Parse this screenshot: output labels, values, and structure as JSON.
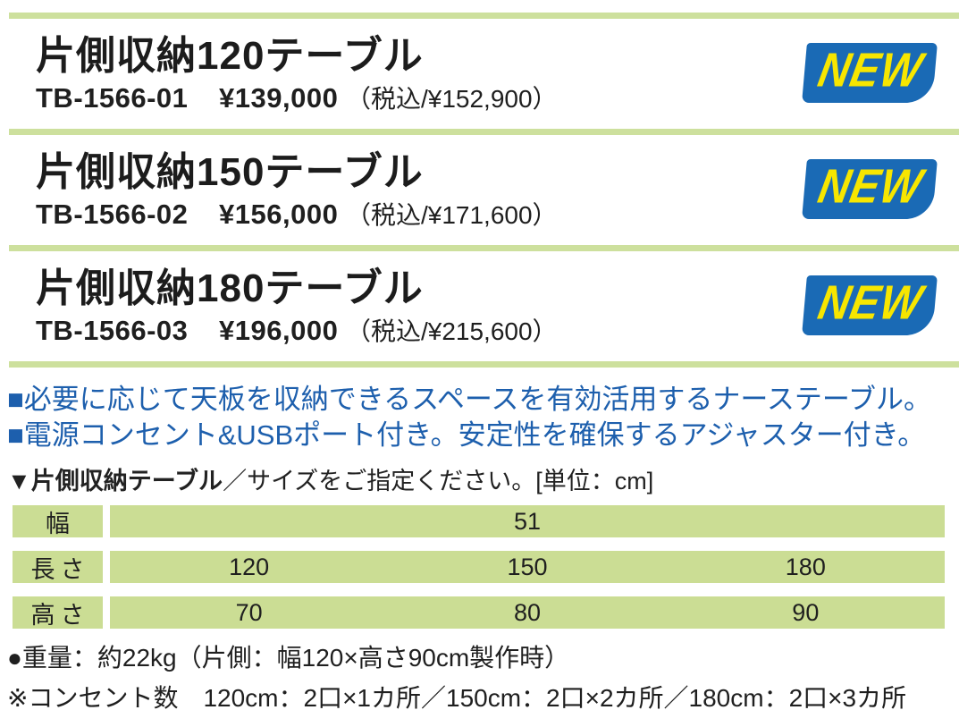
{
  "badge": {
    "label": "NEW",
    "bg_color": "#1a6ab5",
    "text_color": "#f7e600"
  },
  "products": [
    {
      "name": "片側収納120テーブル",
      "code": "TB-1566-01",
      "price": "¥139,000",
      "tax": "（税込/¥152,900）"
    },
    {
      "name": "片側収納150テーブル",
      "code": "TB-1566-02",
      "price": "¥156,000",
      "tax": "（税込/¥171,600）"
    },
    {
      "name": "片側収納180テーブル",
      "code": "TB-1566-03",
      "price": "¥196,000",
      "tax": "（税込/¥215,600）"
    }
  ],
  "features": [
    "■必要に応じて天板を収納できるスペースを有効活用するナーステーブル。",
    "■電源コンセント&USBポート付き。安定性を確保するアジャスター付き。"
  ],
  "size_table": {
    "caption_bold": "▼片側収納テーブル",
    "caption_rest": "／サイズをご指定ください。[単位：cm]",
    "unit": "cm",
    "rows": [
      {
        "label": "幅",
        "values": [
          "51"
        ]
      },
      {
        "label": "長さ",
        "values": [
          "120",
          "150",
          "180"
        ]
      },
      {
        "label": "高さ",
        "values": [
          "70",
          "80",
          "90"
        ]
      }
    ]
  },
  "notes": [
    "●重量：約22kg（片側：幅120×高さ90cm製作時）",
    "※コンセント数　120cm：2口×1カ所／150cm：2口×2カ所／180cm：2口×3カ所"
  ],
  "colors": {
    "divider_green": "#cde09d",
    "table_green": "#cbdd94",
    "feature_blue": "#1d5fad",
    "text_black": "#1f1f1f"
  }
}
